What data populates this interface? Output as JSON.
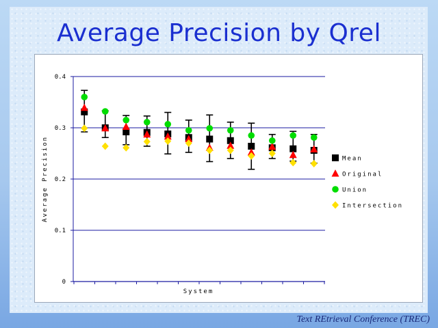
{
  "title": "Average Precision by Qrel",
  "footer": "Text REtrieval Conference (TREC)",
  "colors": {
    "mean": "#000000",
    "original": "#ff0000",
    "union": "#00dd00",
    "intersection": "#ffe000",
    "gridline": "#1a1aa0",
    "title": "#1a2fd0"
  },
  "chart_data": {
    "type": "scatter",
    "title": "Average Precision by Qrel",
    "xlabel": "System",
    "ylabel": "Average Precision",
    "ylim": [
      0,
      0.4
    ],
    "yticks": [
      "0",
      "0.1",
      "0.2",
      "0.3",
      "0.4"
    ],
    "grid": true,
    "legend_position": "right",
    "x": [
      1,
      2,
      3,
      4,
      5,
      6,
      7,
      8,
      9,
      10,
      11,
      12
    ],
    "error_low": [
      0.292,
      0.281,
      0.267,
      0.264,
      0.249,
      0.252,
      0.234,
      0.24,
      0.219,
      0.24,
      0.235,
      0.231
    ],
    "error_high": [
      0.373,
      0.333,
      0.324,
      0.323,
      0.33,
      0.315,
      0.325,
      0.311,
      0.309,
      0.287,
      0.293,
      0.287
    ],
    "series": [
      {
        "name": "Mean",
        "key": "mean",
        "marker": "square",
        "values": [
          0.331,
          0.3,
          0.292,
          0.291,
          0.288,
          0.281,
          0.278,
          0.275,
          0.264,
          0.261,
          0.259,
          0.256
        ]
      },
      {
        "name": "Original",
        "key": "original",
        "marker": "triangle",
        "values": [
          0.339,
          0.299,
          0.302,
          0.287,
          0.283,
          0.278,
          0.261,
          0.265,
          0.252,
          0.263,
          0.247,
          0.258
        ]
      },
      {
        "name": "Union",
        "key": "union",
        "marker": "circle",
        "values": [
          0.36,
          0.332,
          0.315,
          0.311,
          0.307,
          0.295,
          0.299,
          0.295,
          0.285,
          0.275,
          0.285,
          0.281
        ]
      },
      {
        "name": "Intersection",
        "key": "intersection",
        "marker": "diamond",
        "values": [
          0.299,
          0.264,
          0.261,
          0.273,
          0.274,
          0.27,
          0.256,
          0.256,
          0.245,
          0.25,
          0.232,
          0.23
        ]
      }
    ]
  }
}
